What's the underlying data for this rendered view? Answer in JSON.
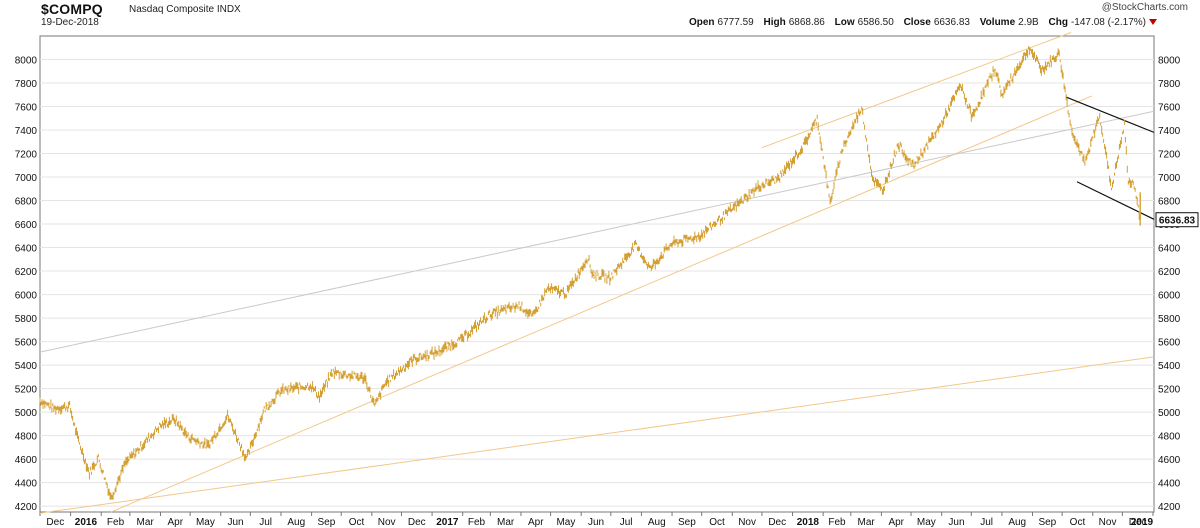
{
  "header": {
    "symbol": "$COMPQ",
    "description": "Nasdaq Composite INDX",
    "date": "19-Dec-2018",
    "brand_at": "@",
    "brand": "StockCharts.com",
    "open_label": "Open",
    "open_value": "6777.59",
    "high_label": "High",
    "high_value": "6868.86",
    "low_label": "Low",
    "low_value": "6586.50",
    "close_label": "Close",
    "close_value": "6636.83",
    "volume_label": "Volume",
    "volume_value": "2.9B",
    "chg_label": "Chg",
    "chg_value": "-147.08 (-2.17%)"
  },
  "colors": {
    "price": "#D4A033",
    "trend": "#F2C88A",
    "gray_trend": "#C9C9C9",
    "channel": "#111111",
    "grid": "#E4E4E4"
  },
  "chart_data": {
    "type": "line",
    "title": "$COMPQ",
    "ylim": [
      4150,
      8200
    ],
    "y_ticks": [
      4200,
      4400,
      4600,
      4800,
      5000,
      5200,
      5400,
      5600,
      5800,
      6000,
      6200,
      6400,
      6600,
      6800,
      7000,
      7200,
      7400,
      7600,
      7800,
      8000
    ],
    "x_range": [
      "2015-12-01",
      "2019-01-02"
    ],
    "x_tick_labels": [
      {
        "date": "2015-12-01",
        "label": "Dec"
      },
      {
        "date": "2016-01-01",
        "label": "2016",
        "bold": true
      },
      {
        "date": "2016-02-01",
        "label": "Feb"
      },
      {
        "date": "2016-03-01",
        "label": "Mar"
      },
      {
        "date": "2016-04-01",
        "label": "Apr"
      },
      {
        "date": "2016-05-01",
        "label": "May"
      },
      {
        "date": "2016-06-01",
        "label": "Jun"
      },
      {
        "date": "2016-07-01",
        "label": "Jul"
      },
      {
        "date": "2016-08-01",
        "label": "Aug"
      },
      {
        "date": "2016-09-01",
        "label": "Sep"
      },
      {
        "date": "2016-10-01",
        "label": "Oct"
      },
      {
        "date": "2016-11-01",
        "label": "Nov"
      },
      {
        "date": "2016-12-01",
        "label": "Dec"
      },
      {
        "date": "2017-01-01",
        "label": "2017",
        "bold": true
      },
      {
        "date": "2017-02-01",
        "label": "Feb"
      },
      {
        "date": "2017-03-01",
        "label": "Mar"
      },
      {
        "date": "2017-04-01",
        "label": "Apr"
      },
      {
        "date": "2017-05-01",
        "label": "May"
      },
      {
        "date": "2017-06-01",
        "label": "Jun"
      },
      {
        "date": "2017-07-01",
        "label": "Jul"
      },
      {
        "date": "2017-08-01",
        "label": "Aug"
      },
      {
        "date": "2017-09-01",
        "label": "Sep"
      },
      {
        "date": "2017-10-01",
        "label": "Oct"
      },
      {
        "date": "2017-11-01",
        "label": "Nov"
      },
      {
        "date": "2017-12-01",
        "label": "Dec"
      },
      {
        "date": "2018-01-01",
        "label": "2018",
        "bold": true
      },
      {
        "date": "2018-02-01",
        "label": "Feb"
      },
      {
        "date": "2018-03-01",
        "label": "Mar"
      },
      {
        "date": "2018-04-01",
        "label": "Apr"
      },
      {
        "date": "2018-05-01",
        "label": "May"
      },
      {
        "date": "2018-06-01",
        "label": "Jun"
      },
      {
        "date": "2018-07-01",
        "label": "Jul"
      },
      {
        "date": "2018-08-01",
        "label": "Aug"
      },
      {
        "date": "2018-09-01",
        "label": "Sep"
      },
      {
        "date": "2018-10-01",
        "label": "Oct"
      },
      {
        "date": "2018-11-01",
        "label": "Nov"
      },
      {
        "date": "2018-12-01",
        "label": "Dec"
      },
      {
        "date": "2019-01-01",
        "label": "2019",
        "bold": true
      }
    ],
    "series": [
      {
        "style": "price_bars",
        "points": [
          [
            "2015-12-01",
            5100
          ],
          [
            "2015-12-15",
            5030
          ],
          [
            "2015-12-31",
            5050
          ],
          [
            "2016-01-08",
            4780
          ],
          [
            "2016-01-20",
            4480
          ],
          [
            "2016-01-29",
            4610
          ],
          [
            "2016-02-11",
            4270
          ],
          [
            "2016-02-25",
            4560
          ],
          [
            "2016-03-15",
            4730
          ],
          [
            "2016-03-31",
            4880
          ],
          [
            "2016-04-15",
            4940
          ],
          [
            "2016-04-29",
            4790
          ],
          [
            "2016-05-19",
            4710
          ],
          [
            "2016-06-08",
            4970
          ],
          [
            "2016-06-27",
            4600
          ],
          [
            "2016-07-15",
            5020
          ],
          [
            "2016-08-01",
            5180
          ],
          [
            "2016-08-31",
            5230
          ],
          [
            "2016-09-09",
            5130
          ],
          [
            "2016-09-22",
            5340
          ],
          [
            "2016-10-25",
            5290
          ],
          [
            "2016-11-04",
            5050
          ],
          [
            "2016-11-15",
            5250
          ],
          [
            "2016-12-13",
            5450
          ],
          [
            "2017-01-06",
            5510
          ],
          [
            "2017-01-31",
            5620
          ],
          [
            "2017-02-28",
            5830
          ],
          [
            "2017-03-31",
            5910
          ],
          [
            "2017-04-13",
            5810
          ],
          [
            "2017-04-28",
            6050
          ],
          [
            "2017-05-17",
            6010
          ],
          [
            "2017-06-08",
            6320
          ],
          [
            "2017-06-12",
            6180
          ],
          [
            "2017-06-30",
            6140
          ],
          [
            "2017-07-26",
            6420
          ],
          [
            "2017-08-10",
            6220
          ],
          [
            "2017-08-31",
            6430
          ],
          [
            "2017-09-29",
            6500
          ],
          [
            "2017-10-31",
            6720
          ],
          [
            "2017-11-28",
            6920
          ],
          [
            "2017-12-18",
            6990
          ],
          [
            "2018-01-12",
            7260
          ],
          [
            "2018-01-26",
            7500
          ],
          [
            "2018-02-08",
            6780
          ],
          [
            "2018-02-20",
            7230
          ],
          [
            "2018-03-12",
            7590
          ],
          [
            "2018-03-23",
            6990
          ],
          [
            "2018-04-02",
            6880
          ],
          [
            "2018-04-18",
            7280
          ],
          [
            "2018-05-03",
            7090
          ],
          [
            "2018-05-31",
            7440
          ],
          [
            "2018-06-20",
            7780
          ],
          [
            "2018-07-02",
            7510
          ],
          [
            "2018-07-25",
            7930
          ],
          [
            "2018-08-01",
            7700
          ],
          [
            "2018-08-29",
            8100
          ],
          [
            "2018-09-10",
            7910
          ],
          [
            "2018-09-28",
            8050
          ],
          [
            "2018-10-10",
            7420
          ],
          [
            "2018-10-24",
            7110
          ],
          [
            "2018-11-08",
            7530
          ],
          [
            "2018-11-20",
            6900
          ],
          [
            "2018-12-03",
            7440
          ],
          [
            "2018-12-07",
            6970
          ],
          [
            "2018-12-14",
            6910
          ],
          [
            "2018-12-19",
            6636.83
          ]
        ]
      }
    ],
    "trendlines": [
      {
        "style": "trend",
        "from": [
          "2016-02-11",
          4150
        ],
        "to": [
          "2018-10-31",
          7690
        ]
      },
      {
        "style": "trend",
        "from": [
          "2015-12-01",
          4140
        ],
        "to": [
          "2019-01-02",
          5470
        ]
      },
      {
        "style": "trend",
        "from": [
          "2017-12-01",
          7250
        ],
        "to": [
          "2018-10-10",
          8230
        ]
      },
      {
        "style": "gray_trend",
        "from": [
          "2015-12-01",
          5510
        ],
        "to": [
          "2019-01-02",
          7560
        ]
      },
      {
        "style": "channel",
        "from": [
          "2018-10-05",
          7680
        ],
        "to": [
          "2019-01-02",
          7380
        ]
      },
      {
        "style": "channel",
        "from": [
          "2018-10-16",
          6960
        ],
        "to": [
          "2019-01-02",
          6640
        ]
      }
    ],
    "last_price": "6636.83",
    "grid": "horizontal"
  }
}
